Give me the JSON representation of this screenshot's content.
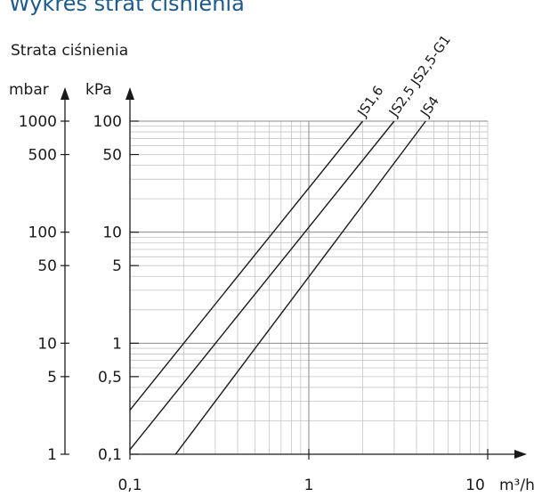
{
  "chart_data": {
    "type": "line",
    "title": "Wykres strat ciśnienia",
    "ylabel": "Strata ciśnienia",
    "y_units": [
      "mbar",
      "kPa"
    ],
    "x_unit": "m³/h",
    "x_scale": "log",
    "y_scale": "log",
    "xlim": [
      0.1,
      10
    ],
    "ylim_kpa": [
      0.1,
      100
    ],
    "grid": true,
    "x_ticks": [
      {
        "value": 0.1,
        "label": "0,1"
      },
      {
        "value": 1,
        "label": "1"
      },
      {
        "value": 10,
        "label": "10"
      }
    ],
    "y_ticks": [
      {
        "kpa": 100,
        "mbar_label": "1000",
        "kpa_label": "100"
      },
      {
        "kpa": 50,
        "mbar_label": "500",
        "kpa_label": "50"
      },
      {
        "kpa": 10,
        "mbar_label": "100",
        "kpa_label": "10"
      },
      {
        "kpa": 5,
        "mbar_label": "50",
        "kpa_label": "5"
      },
      {
        "kpa": 1,
        "mbar_label": "10",
        "kpa_label": "1"
      },
      {
        "kpa": 0.5,
        "mbar_label": "5",
        "kpa_label": "0,5"
      },
      {
        "kpa": 0.1,
        "mbar_label": "1",
        "kpa_label": "0,1"
      }
    ],
    "series": [
      {
        "name": "JS1,6",
        "x": [
          0.1,
          2.0
        ],
        "y": [
          0.25,
          100
        ]
      },
      {
        "name": "JS2,5 JS2,5-G1",
        "x": [
          0.1,
          3.0
        ],
        "y": [
          0.11,
          100
        ]
      },
      {
        "name": "JS4",
        "x": [
          0.18,
          4.5
        ],
        "y": [
          0.1,
          100
        ]
      }
    ]
  },
  "colors": {
    "title": "#1c5a8c",
    "ink": "#1a1a1a",
    "grid": "#c4c4c4"
  }
}
